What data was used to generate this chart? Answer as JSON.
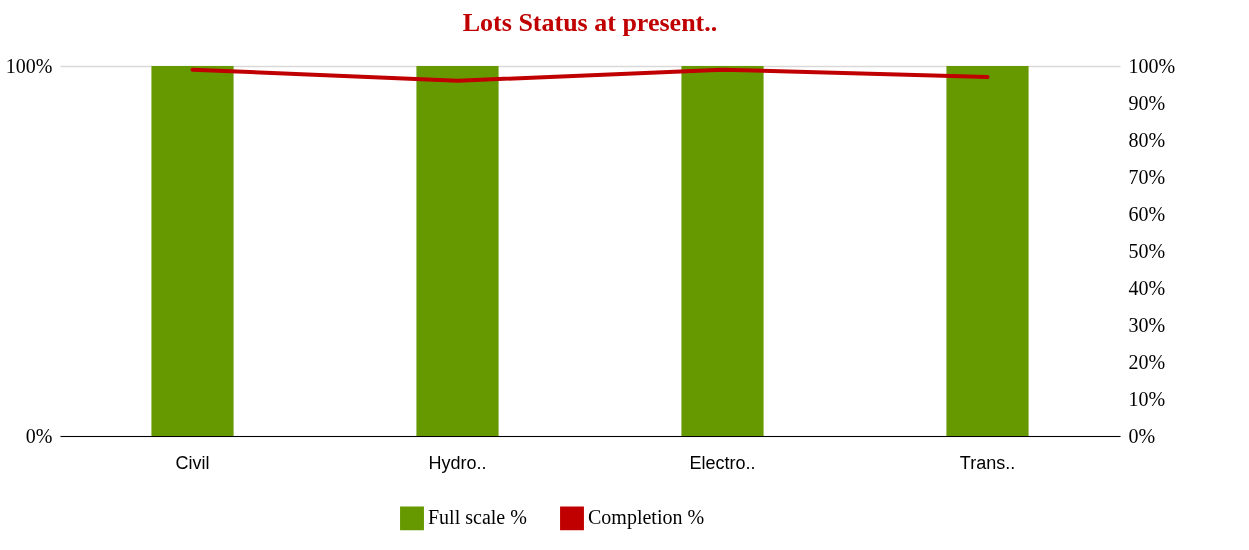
{
  "chart_data": {
    "type": "bar",
    "title": "Lots Status at present..",
    "categories": [
      "Civil",
      "Hydro..",
      "Electro..",
      "Trans.."
    ],
    "series": [
      {
        "name": "Full scale %",
        "color": "#669900",
        "values": [
          100,
          100,
          100,
          100
        ]
      },
      {
        "name": "Completion %",
        "type": "line",
        "axis": "y2",
        "color": "#c00000",
        "values": [
          99,
          96,
          99,
          97
        ]
      }
    ],
    "ylim": [
      0,
      100
    ],
    "yticks": [
      {
        "value": 0,
        "label": "0%"
      },
      {
        "value": 100,
        "label": "100%"
      }
    ],
    "y2lim": [
      0,
      100
    ],
    "y2ticks": [
      {
        "value": 0,
        "label": "0%"
      },
      {
        "value": 10,
        "label": "10%"
      },
      {
        "value": 20,
        "label": "20%"
      },
      {
        "value": 30,
        "label": "30%"
      },
      {
        "value": 40,
        "label": "40%"
      },
      {
        "value": 50,
        "label": "50%"
      },
      {
        "value": 60,
        "label": "60%"
      },
      {
        "value": 70,
        "label": "70%"
      },
      {
        "value": 80,
        "label": "80%"
      },
      {
        "value": 90,
        "label": "90%"
      },
      {
        "value": 100,
        "label": "100%"
      }
    ],
    "grid": "y",
    "legend": "bottom",
    "marker": "none",
    "line_style": "solid"
  }
}
